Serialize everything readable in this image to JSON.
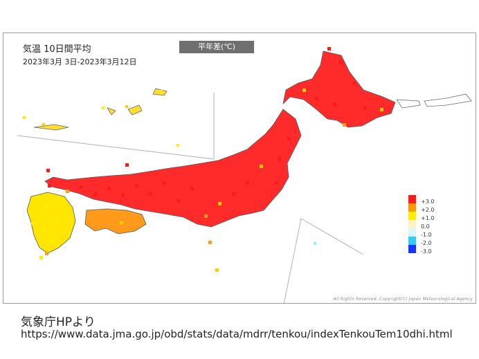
{
  "map": {
    "title": "気温 10日間平均",
    "period": "2023年3月 3日-2023年3月12日",
    "label": "平年差(℃)",
    "copyright": "All Rights Reserved, Copyright(C) Japan Meteorological Agency"
  },
  "legend": {
    "unit": "(℃)",
    "items": [
      {
        "label": "+3.0",
        "color": "#ff1a1a"
      },
      {
        "label": "+2.0",
        "color": "#ff9900"
      },
      {
        "label": "+1.0",
        "color": "#ffee00"
      },
      {
        "label": "0.0",
        "color": "#fff2c0"
      },
      {
        "label": "-1.0",
        "color": "#d8f6ff"
      },
      {
        "label": "-2.0",
        "color": "#33ccff"
      },
      {
        "label": "-3.0",
        "color": "#1a33ff"
      }
    ]
  },
  "caption": "気象庁HPより",
  "source_url": "https://www.data.jma.go.jp/obd/stats/data/mdrr/tenkou/indexTenkouTem10dhi.html"
}
